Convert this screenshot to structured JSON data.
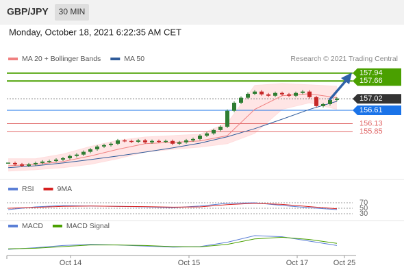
{
  "chart_data": [
    {
      "type": "candlestick",
      "title": "GBP/JPY",
      "timeframe": "30 MIN",
      "subtitle": "Monday, October 18, 2021 6:22:35 AM CET",
      "source": "Research © 2021 Trading Central",
      "xlim": [
        0,
        50.8
      ],
      "ylim": [
        154.3,
        158.23
      ],
      "x": [
        0,
        1,
        2,
        3,
        4,
        5,
        6,
        7,
        8,
        9,
        10,
        11,
        12,
        13,
        14,
        15,
        16,
        17,
        18,
        19,
        20,
        21,
        22,
        23,
        24,
        25,
        26,
        27,
        28,
        29,
        30,
        31,
        32,
        33,
        34,
        35,
        36,
        37,
        38,
        39,
        40,
        41,
        42,
        43,
        44,
        45,
        46,
        47,
        48
      ],
      "values": [
        154.72,
        154.67,
        154.62,
        154.67,
        154.72,
        154.77,
        154.79,
        154.84,
        154.89,
        154.97,
        155.02,
        155.12,
        155.21,
        155.31,
        155.36,
        155.41,
        155.53,
        155.51,
        155.48,
        155.53,
        155.46,
        155.51,
        155.48,
        155.51,
        155.41,
        155.46,
        155.53,
        155.58,
        155.7,
        155.78,
        155.9,
        156.02,
        156.59,
        156.88,
        157.06,
        157.2,
        157.28,
        157.18,
        157.13,
        157.23,
        157.18,
        157.13,
        157.23,
        157.28,
        157.08,
        156.76,
        156.83,
        156.98,
        157.03
      ],
      "up_color": "#2e7d32",
      "down_color": "#c62828",
      "overlays": [
        {
          "name": "MA 20 + Bollinger Bands",
          "color": "#f08080",
          "band_color": "#ffdede",
          "x": [
            0,
            4,
            8,
            12,
            16,
            20,
            24,
            28,
            32,
            36,
            40,
            44,
            48
          ],
          "values": [
            154.62,
            154.67,
            154.77,
            154.97,
            155.21,
            155.41,
            155.46,
            155.51,
            155.7,
            156.64,
            157.13,
            157.2,
            157.06
          ],
          "upper": [
            154.87,
            154.87,
            155.04,
            155.31,
            155.53,
            155.65,
            155.7,
            155.75,
            156.15,
            157.5,
            157.57,
            157.52,
            157.47
          ],
          "lower": [
            154.43,
            154.48,
            154.55,
            154.67,
            154.87,
            155.11,
            155.21,
            155.29,
            155.41,
            155.78,
            156.64,
            156.88,
            156.64
          ]
        },
        {
          "name": "MA 50",
          "color": "#2f5b9a",
          "x": [
            0,
            4,
            8,
            12,
            16,
            20,
            24,
            28,
            32,
            36,
            40,
            44,
            48
          ],
          "values": [
            154.55,
            154.62,
            154.72,
            154.84,
            154.97,
            155.11,
            155.26,
            155.43,
            155.66,
            155.95,
            156.29,
            156.64,
            156.93
          ]
        }
      ],
      "levels": [
        {
          "value": 157.94,
          "color": "#4aa000",
          "label_box": true
        },
        {
          "value": 157.66,
          "color": "#4aa000",
          "label_box": true
        },
        {
          "value": 157.02,
          "color": "#333333",
          "label_box": true,
          "dashed": true
        },
        {
          "value": 156.61,
          "color": "#1a73e8",
          "label_box": true
        },
        {
          "value": 156.13,
          "color": "#e06666",
          "label_box": false
        },
        {
          "value": 155.85,
          "color": "#e06666",
          "label_box": false
        }
      ]
    },
    {
      "type": "line",
      "xlim": [
        0,
        50.8
      ],
      "ylim": [
        15,
        95
      ],
      "yticks": [
        70,
        50,
        30
      ],
      "x": [
        0,
        4,
        8,
        12,
        16,
        20,
        24,
        28,
        32,
        36,
        40,
        44,
        48
      ],
      "series": [
        {
          "name": "RSI",
          "color": "#5b7fd6",
          "values": [
            45,
            55,
            60,
            58,
            57,
            55,
            52,
            58,
            68,
            70,
            60,
            52,
            45
          ]
        },
        {
          "name": "9MA",
          "color": "#d62020",
          "values": [
            50,
            53,
            57,
            58,
            57,
            56,
            54,
            55,
            63,
            68,
            64,
            56,
            48
          ]
        }
      ]
    },
    {
      "type": "line",
      "xlim": [
        0,
        50.8
      ],
      "ylim": [
        -0.15,
        0.25
      ],
      "xticks": [
        {
          "value": 9.1,
          "label": "Oct 14"
        },
        {
          "value": 26.4,
          "label": "Oct 15"
        },
        {
          "value": 42.2,
          "label": "Oct 17"
        },
        {
          "value": 49.1,
          "label": "Oct 25"
        }
      ],
      "x": [
        0,
        4,
        8,
        12,
        16,
        20,
        24,
        28,
        32,
        36,
        40,
        44,
        48
      ],
      "series": [
        {
          "name": "MACD",
          "color": "#5b7fd6",
          "values": [
            -0.05,
            -0.02,
            0.02,
            0.04,
            0.03,
            0.01,
            -0.01,
            0.0,
            0.08,
            0.2,
            0.18,
            0.1,
            0.02
          ]
        },
        {
          "name": "MACD Signal",
          "color": "#4aa000",
          "values": [
            -0.04,
            -0.03,
            0.0,
            0.03,
            0.03,
            0.02,
            0.0,
            -0.005,
            0.04,
            0.14,
            0.17,
            0.13,
            0.06
          ]
        }
      ]
    }
  ]
}
